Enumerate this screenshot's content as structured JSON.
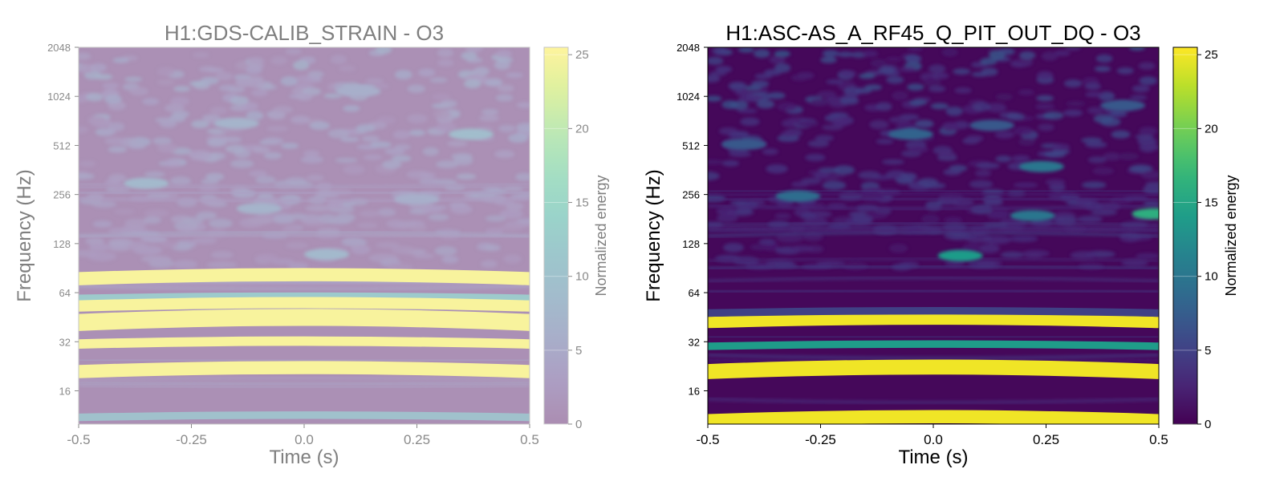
{
  "chart_data": [
    {
      "type": "heatmap",
      "title": "H1:GDS-CALIB_STRAIN - O3",
      "xlabel": "Time (s)",
      "ylabel": "Frequency (Hz)",
      "colorbar_label": "Normalized energy",
      "xlim": [
        -0.5,
        0.5
      ],
      "ylim": [
        10,
        2048
      ],
      "yscale": "log2",
      "clim": [
        0,
        25.5
      ],
      "colormap": "viridis",
      "faded": true,
      "x_ticks": [
        "-0.5",
        "-0.25",
        "0.0",
        "0.25",
        "0.5"
      ],
      "y_ticks": [
        "2048",
        "1024",
        "512",
        "256",
        "128",
        "64",
        "32",
        "16"
      ],
      "colorbar_ticks": [
        "0",
        "5",
        "10",
        "15",
        "20",
        "25"
      ],
      "bands": [
        {
          "freq": 78,
          "energy": 25,
          "thickness": 0.035
        },
        {
          "freq": 59,
          "energy": 12,
          "thickness": 0.02
        },
        {
          "freq": 53,
          "energy": 25,
          "thickness": 0.03
        },
        {
          "freq": 42,
          "energy": 25,
          "thickness": 0.045
        },
        {
          "freq": 31,
          "energy": 25,
          "thickness": 0.025
        },
        {
          "freq": 21,
          "energy": 25,
          "thickness": 0.035
        },
        {
          "freq": 11,
          "energy": 10,
          "thickness": 0.02
        }
      ],
      "blobs": [
        {
          "t": -0.35,
          "freq": 300,
          "energy": 8
        },
        {
          "t": -0.1,
          "freq": 210,
          "energy": 7
        },
        {
          "t": 0.05,
          "freq": 110,
          "energy": 8
        },
        {
          "t": 0.25,
          "freq": 240,
          "energy": 6
        },
        {
          "t": 0.37,
          "freq": 600,
          "energy": 9
        },
        {
          "t": -0.15,
          "freq": 700,
          "energy": 7
        },
        {
          "t": 0.12,
          "freq": 1100,
          "energy": 6
        }
      ]
    },
    {
      "type": "heatmap",
      "title": "H1:ASC-AS_A_RF45_Q_PIT_OUT_DQ - O3",
      "xlabel": "Time (s)",
      "ylabel": "Frequency (Hz)",
      "colorbar_label": "Normalized energy",
      "xlim": [
        -0.5,
        0.5
      ],
      "ylim": [
        10,
        2048
      ],
      "yscale": "log2",
      "clim": [
        0,
        25.5
      ],
      "colormap": "viridis",
      "faded": false,
      "x_ticks": [
        "-0.5",
        "-0.25",
        "0.0",
        "0.25",
        "0.5"
      ],
      "y_ticks": [
        "2048",
        "1024",
        "512",
        "256",
        "128",
        "64",
        "32",
        "16"
      ],
      "colorbar_ticks": [
        "0",
        "5",
        "10",
        "15",
        "20",
        "25"
      ],
      "bands": [
        {
          "freq": 42,
          "energy": 25,
          "thickness": 0.03
        },
        {
          "freq": 30,
          "energy": 14,
          "thickness": 0.02
        },
        {
          "freq": 21,
          "energy": 25,
          "thickness": 0.04
        },
        {
          "freq": 10.5,
          "energy": 25,
          "thickness": 0.035
        },
        {
          "freq": 48,
          "energy": 5,
          "thickness": 0.02
        }
      ],
      "blobs": [
        {
          "t": -0.3,
          "freq": 250,
          "energy": 9
        },
        {
          "t": 0.06,
          "freq": 108,
          "energy": 14
        },
        {
          "t": 0.22,
          "freq": 190,
          "energy": 10
        },
        {
          "t": 0.49,
          "freq": 195,
          "energy": 16
        },
        {
          "t": 0.24,
          "freq": 380,
          "energy": 10
        },
        {
          "t": -0.42,
          "freq": 520,
          "energy": 7
        },
        {
          "t": -0.05,
          "freq": 600,
          "energy": 8
        },
        {
          "t": 0.42,
          "freq": 900,
          "energy": 7
        },
        {
          "t": 0.13,
          "freq": 680,
          "energy": 7
        }
      ]
    }
  ]
}
